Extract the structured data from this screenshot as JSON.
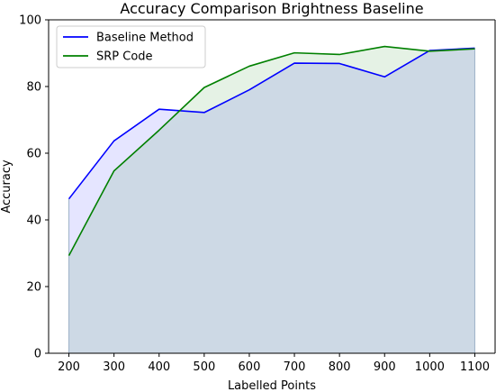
{
  "chart_data": {
    "type": "area",
    "title": "Accuracy Comparison Brightness Baseline",
    "xlabel": "Labelled Points",
    "ylabel": "Accuracy",
    "x": [
      200,
      300,
      400,
      500,
      600,
      700,
      800,
      900,
      1000,
      1100
    ],
    "xticks": [
      200,
      300,
      400,
      500,
      600,
      700,
      800,
      900,
      1000,
      1100
    ],
    "yticks": [
      0,
      20,
      40,
      60,
      80,
      100
    ],
    "xlim": [
      155,
      1145
    ],
    "ylim": [
      0,
      100
    ],
    "grid": false,
    "legend_position": "top-left",
    "series": [
      {
        "name": "Baseline Method",
        "color": "#0000ff",
        "fill_color": "#ccccff",
        "values": [
          46.3,
          63.7,
          73.2,
          72.2,
          79.0,
          87.0,
          86.9,
          82.9,
          90.8,
          91.5
        ]
      },
      {
        "name": "SRP Code",
        "color": "#008000",
        "fill_color": "#d9ecd9",
        "values": [
          29.3,
          54.7,
          66.9,
          79.7,
          86.1,
          90.1,
          89.6,
          92.0,
          90.6,
          91.3
        ]
      }
    ],
    "overlap_fill_color": "#cdd9e5"
  }
}
